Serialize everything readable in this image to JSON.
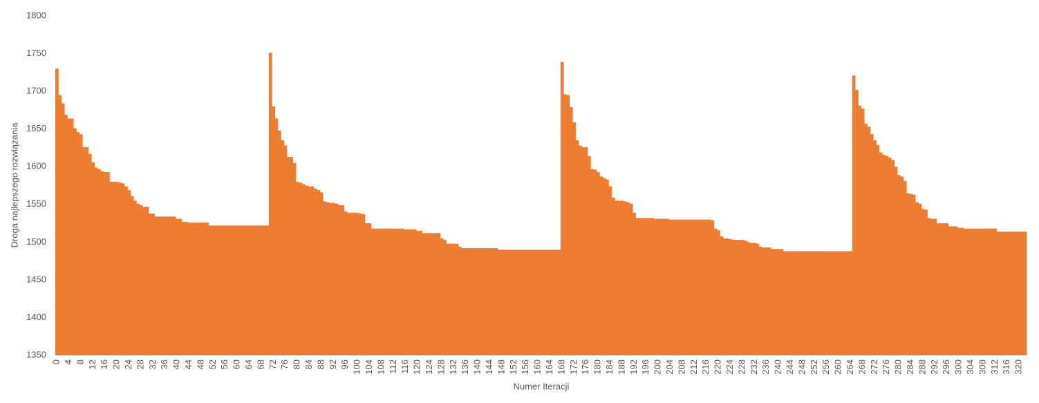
{
  "chart_data": {
    "type": "bar",
    "x_label": "Numer Iteracji",
    "y_label": "Droga najlepszego rozwiązania",
    "color": "#ed7d31",
    "grid": false,
    "ylim": [
      1350,
      1800
    ],
    "yticks": [
      1350,
      1400,
      1450,
      1500,
      1550,
      1600,
      1650,
      1700,
      1750,
      1800
    ],
    "categories": [
      "0",
      null,
      null,
      null,
      "4",
      null,
      null,
      null,
      "8",
      null,
      null,
      null,
      "12",
      null,
      null,
      null,
      "16",
      null,
      null,
      null,
      "20",
      null,
      null,
      null,
      "24",
      null,
      null,
      null,
      "28",
      null,
      null,
      null,
      "32",
      null,
      null,
      null,
      "36",
      null,
      null,
      null,
      "40",
      null,
      null,
      null,
      "44",
      null,
      null,
      null,
      "48",
      null,
      null,
      null,
      "52",
      null,
      null,
      null,
      "56",
      null,
      null,
      null,
      "60",
      null,
      null,
      null,
      "64",
      null,
      null,
      null,
      "68",
      null,
      null,
      null,
      "72",
      null,
      null,
      null,
      "76",
      null,
      null,
      null,
      "80",
      null,
      null,
      null,
      "84",
      null,
      null,
      null,
      "88",
      null,
      null,
      null,
      "92",
      null,
      null,
      null,
      "96",
      null,
      null,
      null,
      "100",
      null,
      null,
      null,
      "104",
      null,
      null,
      null,
      "108",
      null,
      null,
      null,
      "112",
      null,
      null,
      null,
      "116",
      null,
      null,
      null,
      "120",
      null,
      null,
      null,
      "124",
      null,
      null,
      null,
      "128",
      null,
      null,
      null,
      "132",
      null,
      null,
      null,
      "136",
      null,
      null,
      null,
      "140",
      null,
      null,
      null,
      "144",
      null,
      null,
      null,
      "148",
      null,
      null,
      null,
      "152",
      null,
      null,
      null,
      "156",
      null,
      null,
      null,
      "160",
      null,
      null,
      null,
      "164",
      null,
      null,
      null,
      "168",
      null,
      null,
      null,
      "172",
      null,
      null,
      null,
      "176",
      null,
      null,
      null,
      "180",
      null,
      null,
      null,
      "184",
      null,
      null,
      null,
      "188",
      null,
      null,
      null,
      "192",
      null,
      null,
      null,
      "196",
      null,
      null,
      null,
      "200",
      null,
      null,
      null,
      "204",
      null,
      null,
      null,
      "208",
      null,
      null,
      null,
      "212",
      null,
      null,
      null,
      "216",
      null,
      null,
      null,
      "220",
      null,
      null,
      null,
      "224",
      null,
      null,
      null,
      "228",
      null,
      null,
      null,
      "232",
      null,
      null,
      null,
      "236",
      null,
      null,
      null,
      "240",
      null,
      null,
      null,
      "244",
      null,
      null,
      null,
      "248",
      null,
      null,
      null,
      "252",
      null,
      null,
      null,
      "256",
      null,
      null,
      null,
      "260",
      null,
      null,
      null,
      "264",
      null,
      null,
      null,
      "268",
      null,
      null,
      null,
      "272",
      null,
      null,
      null,
      "276",
      null,
      null,
      null,
      "280",
      null,
      null,
      null,
      "284",
      null,
      null,
      null,
      "288",
      null,
      null,
      null,
      "292",
      null,
      null,
      null,
      "296",
      null,
      null,
      null,
      "300",
      null,
      null,
      null,
      "304",
      null,
      null,
      null,
      "308",
      null,
      null,
      null,
      "312",
      null,
      null,
      null,
      "316",
      null,
      null,
      null,
      "320",
      null,
      null
    ],
    "values": [
      1730,
      1695,
      1684,
      1669,
      1664,
      1664,
      1651,
      1646,
      1643,
      1626,
      1626,
      1617,
      1606,
      1599,
      1597,
      1594,
      1593,
      1593,
      1580,
      1580,
      1580,
      1579,
      1578,
      1574,
      1569,
      1561,
      1555,
      1551,
      1549,
      1547,
      1547,
      1538,
      1538,
      1534,
      1534,
      1534,
      1534,
      1534,
      1534,
      1534,
      1531,
      1531,
      1527,
      1527,
      1526,
      1526,
      1526,
      1526,
      1526,
      1526,
      1526,
      1522,
      1522,
      1522,
      1522,
      1522,
      1522,
      1522,
      1522,
      1522,
      1522,
      1522,
      1522,
      1522,
      1522,
      1522,
      1522,
      1522,
      1522,
      1522,
      1522,
      1751,
      1680,
      1664,
      1648,
      1635,
      1628,
      1613,
      1613,
      1605,
      1580,
      1579,
      1577,
      1575,
      1574,
      1574,
      1571,
      1569,
      1566,
      1554,
      1553,
      1552,
      1552,
      1551,
      1549,
      1549,
      1541,
      1539,
      1539,
      1539,
      1539,
      1538,
      1537,
      1525,
      1525,
      1518,
      1518,
      1518,
      1518,
      1518,
      1518,
      1518,
      1518,
      1518,
      1518,
      1518,
      1517,
      1517,
      1517,
      1517,
      1515,
      1515,
      1512,
      1512,
      1512,
      1512,
      1512,
      1512,
      1505,
      1503,
      1498,
      1498,
      1498,
      1498,
      1494,
      1492,
      1492,
      1492,
      1492,
      1492,
      1492,
      1492,
      1492,
      1492,
      1492,
      1492,
      1492,
      1490,
      1490,
      1490,
      1490,
      1490,
      1490,
      1490,
      1490,
      1490,
      1490,
      1490,
      1490,
      1490,
      1490,
      1490,
      1490,
      1490,
      1490,
      1490,
      1490,
      1490,
      1739,
      1696,
      1695,
      1679,
      1659,
      1635,
      1628,
      1626,
      1626,
      1614,
      1597,
      1596,
      1593,
      1587,
      1585,
      1583,
      1574,
      1559,
      1555,
      1555,
      1555,
      1554,
      1553,
      1551,
      1539,
      1532,
      1532,
      1532,
      1532,
      1532,
      1532,
      1531,
      1531,
      1531,
      1531,
      1531,
      1530,
      1530,
      1530,
      1530,
      1530,
      1530,
      1530,
      1530,
      1530,
      1530,
      1530,
      1530,
      1530,
      1530,
      1529,
      1518,
      1516,
      1508,
      1505,
      1505,
      1504,
      1503,
      1503,
      1503,
      1503,
      1502,
      1500,
      1499,
      1499,
      1498,
      1494,
      1493,
      1493,
      1493,
      1491,
      1491,
      1491,
      1491,
      1488,
      1488,
      1488,
      1488,
      1488,
      1488,
      1488,
      1488,
      1488,
      1488,
      1488,
      1488,
      1488,
      1488,
      1488,
      1488,
      1488,
      1488,
      1488,
      1488,
      1488,
      1488,
      1488,
      1721,
      1702,
      1681,
      1677,
      1657,
      1653,
      1643,
      1635,
      1629,
      1619,
      1616,
      1614,
      1612,
      1609,
      1600,
      1589,
      1587,
      1581,
      1565,
      1564,
      1563,
      1553,
      1551,
      1544,
      1543,
      1532,
      1531,
      1531,
      1525,
      1525,
      1525,
      1525,
      1521,
      1521,
      1521,
      1519,
      1519,
      1518,
      1518,
      1518,
      1518,
      1518,
      1518,
      1518,
      1518,
      1518,
      1518,
      1518,
      1514,
      1514,
      1514,
      1514,
      1514,
      1514,
      1514,
      1514,
      1514,
      1514
    ]
  }
}
